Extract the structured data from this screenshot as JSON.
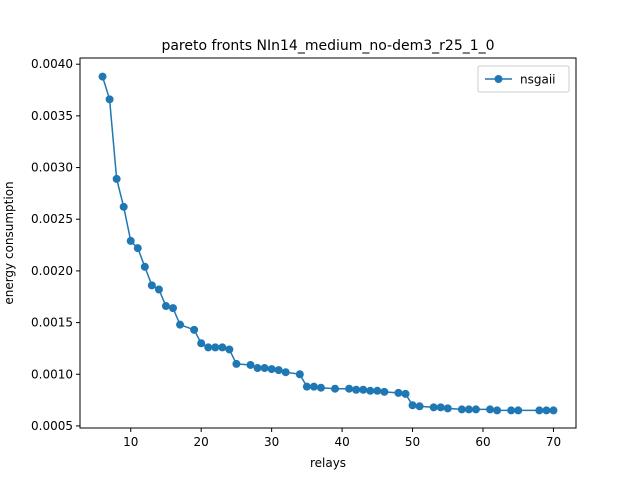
{
  "chart_data": {
    "type": "line",
    "title": "pareto fronts NIn14_medium_no-dem3_r25_1_0",
    "xlabel": "relays",
    "ylabel": "energy consumption",
    "xlim": [
      2.8,
      73.2
    ],
    "ylim": [
      0.00048,
      0.00406
    ],
    "x_ticks": [
      {
        "value": 10,
        "label": "10"
      },
      {
        "value": 20,
        "label": "20"
      },
      {
        "value": 30,
        "label": "30"
      },
      {
        "value": 40,
        "label": "40"
      },
      {
        "value": 50,
        "label": "50"
      },
      {
        "value": 60,
        "label": "60"
      },
      {
        "value": 70,
        "label": "70"
      }
    ],
    "y_ticks": [
      {
        "value": 0.0005,
        "label": "0.0005"
      },
      {
        "value": 0.001,
        "label": "0.0010"
      },
      {
        "value": 0.0015,
        "label": "0.0015"
      },
      {
        "value": 0.002,
        "label": "0.0020"
      },
      {
        "value": 0.0025,
        "label": "0.0025"
      },
      {
        "value": 0.003,
        "label": "0.0030"
      },
      {
        "value": 0.0035,
        "label": "0.0035"
      },
      {
        "value": 0.004,
        "label": "0.0040"
      }
    ],
    "grid": false,
    "legend_position": "top-right",
    "series": [
      {
        "name": "nsgaii",
        "color": "#1f77b4",
        "marker": "circle",
        "x": [
          6,
          7,
          8,
          9,
          10,
          11,
          12,
          13,
          14,
          15,
          16,
          17,
          19,
          20,
          21,
          22,
          23,
          24,
          25,
          27,
          28,
          29,
          30,
          31,
          32,
          34,
          35,
          36,
          37,
          39,
          41,
          42,
          43,
          44,
          45,
          46,
          48,
          49,
          50,
          51,
          53,
          54,
          55,
          57,
          58,
          59,
          61,
          62,
          64,
          65,
          68,
          69,
          70
        ],
        "y": [
          0.00388,
          0.00366,
          0.00289,
          0.00262,
          0.00229,
          0.00222,
          0.00204,
          0.00186,
          0.00182,
          0.00166,
          0.00164,
          0.00148,
          0.00143,
          0.0013,
          0.00126,
          0.00126,
          0.00126,
          0.00124,
          0.0011,
          0.00109,
          0.00106,
          0.00106,
          0.00105,
          0.00104,
          0.00102,
          0.001,
          0.00088,
          0.00088,
          0.00087,
          0.00086,
          0.00086,
          0.00085,
          0.00085,
          0.00084,
          0.00084,
          0.00083,
          0.00082,
          0.00081,
          0.0007,
          0.00069,
          0.00068,
          0.00068,
          0.00067,
          0.00066,
          0.00066,
          0.00066,
          0.00066,
          0.00065,
          0.00065,
          0.00065,
          0.00065,
          0.00065,
          0.00065
        ]
      }
    ]
  }
}
